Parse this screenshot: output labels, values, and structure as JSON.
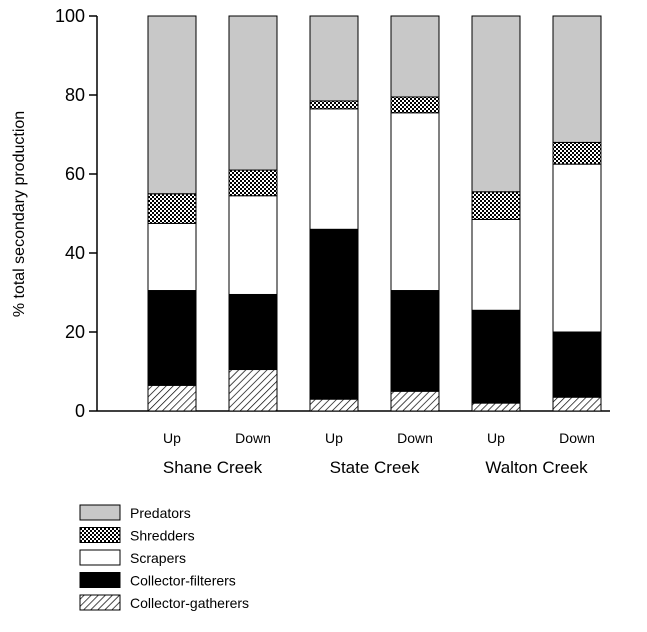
{
  "chart_data": {
    "type": "bar",
    "stacked": true,
    "ylabel": "% total secondary production",
    "xlabel": "",
    "ylim": [
      0,
      100
    ],
    "yticks": [
      0,
      20,
      40,
      60,
      80,
      100
    ],
    "categories": [
      "Up",
      "Down",
      "Up",
      "Down",
      "Up",
      "Down"
    ],
    "groups": [
      {
        "label": "Shane Creek",
        "categories": [
          0,
          1
        ]
      },
      {
        "label": "State Creek",
        "categories": [
          2,
          3
        ]
      },
      {
        "label": "Walton Creek",
        "categories": [
          4,
          5
        ]
      }
    ],
    "series": [
      {
        "name": "Collector-gatherers",
        "pattern": "hatch",
        "values": [
          6.5,
          10.5,
          3.0,
          5.0,
          2.0,
          3.5
        ]
      },
      {
        "name": "Collector-filterers",
        "pattern": "solid-black",
        "values": [
          24.0,
          19.0,
          43.0,
          25.5,
          23.5,
          16.5
        ]
      },
      {
        "name": "Scrapers",
        "pattern": "white",
        "values": [
          17.0,
          25.0,
          30.5,
          45.0,
          23.0,
          42.5
        ]
      },
      {
        "name": "Shredders",
        "pattern": "crosshatch",
        "values": [
          7.5,
          6.5,
          2.0,
          4.0,
          7.0,
          5.5
        ]
      },
      {
        "name": "Predators",
        "pattern": "gray",
        "values": [
          45.0,
          39.0,
          21.5,
          20.5,
          44.5,
          32.0
        ]
      }
    ],
    "legend_order": [
      "Predators",
      "Shredders",
      "Scrapers",
      "Collector-filterers",
      "Collector-gatherers"
    ],
    "legend_position": "bottom-left",
    "colors": {
      "gray": "#c8c8c8",
      "black": "#000000",
      "white": "#ffffff"
    }
  }
}
